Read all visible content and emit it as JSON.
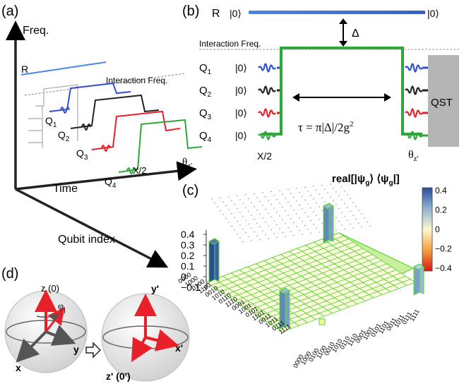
{
  "panel_a": {
    "label": "(a)",
    "freq_axis": "Freq.",
    "time_axis": "Time",
    "qubit_axis": "Qubit index",
    "resonator": "R",
    "interaction_freq": "Interaction Freq.",
    "q1": "Q",
    "q1_sub": "1",
    "q2": "Q",
    "q2_sub": "2",
    "q3": "Q",
    "q3_sub": "3",
    "q4": "Q",
    "q4_sub": "4",
    "pulse_x2": "X/2",
    "theta": "θ",
    "theta_sub": "z'"
  },
  "panel_b": {
    "label": "(b)",
    "resonator": "R",
    "ket_left": "|0⟩",
    "ket_right": "|0⟩",
    "delta": "Δ",
    "interaction_freq": "Interaction Freq.",
    "rows": [
      {
        "q": "Q",
        "sub": "1",
        "ket": "|0⟩",
        "color": "#2e4fd6"
      },
      {
        "q": "Q",
        "sub": "2",
        "ket": "|0⟩",
        "color": "#222222"
      },
      {
        "q": "Q",
        "sub": "3",
        "ket": "|0⟩",
        "color": "#e8202a"
      },
      {
        "q": "Q",
        "sub": "4",
        "ket": "|0⟩",
        "color": "#2fa83a"
      }
    ],
    "tau_formula": "τ = π|Δ|/2g",
    "tau_exp": "2",
    "pulse_x2": "X/2",
    "theta": "θ",
    "theta_sub": "z'",
    "qst": "QST"
  },
  "panel_c": {
    "label": "(c)",
    "title_prefix": "real[|ψ",
    "title_sub1": "g",
    "title_mid": "⟩ ⟨ψ",
    "title_sub2": "g",
    "title_suffix": "|]",
    "z_ticks": [
      "0.4",
      "0.3",
      "0.2",
      "0.1",
      "0",
      "−0.1"
    ],
    "colorbar_ticks": [
      "0.4",
      "0.2",
      "0",
      "−0.2",
      "−0.4"
    ],
    "colors": {
      "positive": "#3a5fa8",
      "zero": "#fff8d0",
      "negative": "#d7191c",
      "edge": "#5ad630"
    }
  },
  "panel_d": {
    "label": "(d)",
    "left_sphere": {
      "z": "z (0)",
      "phi": "φ",
      "phi_sub": "j",
      "x": "x",
      "y": "y"
    },
    "right_sphere": {
      "y": "y'",
      "x": "x'",
      "z": "z' (0')"
    }
  }
}
